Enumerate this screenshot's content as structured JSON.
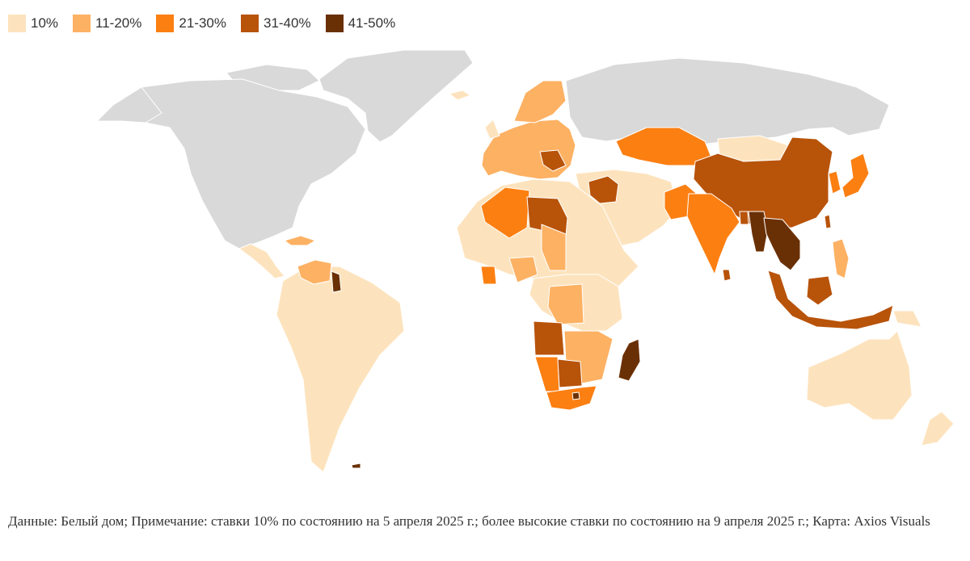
{
  "legend": [
    {
      "label": "10%",
      "color": "#fde3bd"
    },
    {
      "label": "11-20%",
      "color": "#fdb163"
    },
    {
      "label": "21-30%",
      "color": "#fc7f12"
    },
    {
      "label": "31-40%",
      "color": "#b8530a"
    },
    {
      "label": "41-50%",
      "color": "#6a3005"
    }
  ],
  "colors": {
    "no_data": "#d9d9d9",
    "background": "#ffffff"
  },
  "source_note": "Данные: Белый дом; Примечание: ставки 10% по состоянию на 5 апреля 2025 г.; более высокие ставки по состоянию на 9 апреля 2025 г.; Карта: Axios Visuals"
}
